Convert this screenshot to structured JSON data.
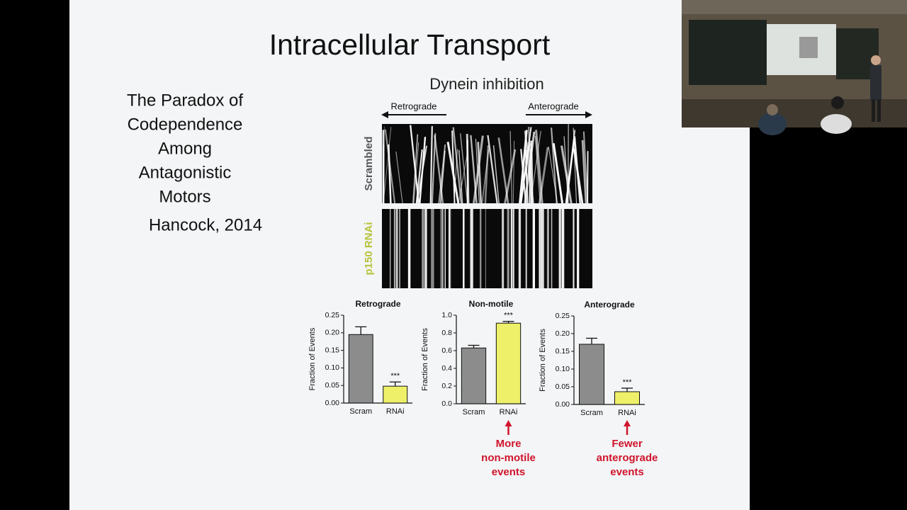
{
  "slide": {
    "title": "Intracellular Transport",
    "left_text": [
      "The Paradox of",
      "Codependence",
      "Among",
      "Antagonistic",
      "Motors"
    ],
    "citation": "Hancock, 2014",
    "figure_title": "Dynein inhibition",
    "direction_labels": [
      "Retrograde",
      "Anterograde"
    ],
    "kymograph_labels": [
      "Scrambled",
      "p150 RNAi"
    ]
  },
  "chart_data": [
    {
      "type": "bar",
      "title": "Retrograde",
      "y_label": "Fraction of Events",
      "categories": [
        "Scram",
        "RNAi"
      ],
      "values": [
        0.195,
        0.048
      ],
      "errors": [
        0.022,
        0.012
      ],
      "colors": [
        "#8c8c8c",
        "#eef06a"
      ],
      "significance": [
        null,
        "***"
      ],
      "ylim": [
        0,
        0.25
      ],
      "yticks": [
        {
          "value": 0,
          "label": "0.00"
        },
        {
          "value": 0.05,
          "label": "0.05"
        },
        {
          "value": 0.1,
          "label": "0.10"
        },
        {
          "value": 0.15,
          "label": "0.15"
        },
        {
          "value": 0.2,
          "label": "0.20"
        },
        {
          "value": 0.25,
          "label": "0.25"
        }
      ]
    },
    {
      "type": "bar",
      "title": "Non-motile",
      "y_label": "Fraction of Events",
      "categories": [
        "Scram",
        "RNAi"
      ],
      "values": [
        0.63,
        0.91
      ],
      "errors": [
        0.03,
        0.02
      ],
      "colors": [
        "#8c8c8c",
        "#eef06a"
      ],
      "significance": [
        null,
        "***"
      ],
      "ylim": [
        0,
        1.0
      ],
      "yticks": [
        {
          "value": 0,
          "label": "0.0"
        },
        {
          "value": 0.2,
          "label": "0.2"
        },
        {
          "value": 0.4,
          "label": "0.4"
        },
        {
          "value": 0.6,
          "label": "0.6"
        },
        {
          "value": 0.8,
          "label": "0.8"
        },
        {
          "value": 1.0,
          "label": "1.0"
        }
      ],
      "callout": [
        "More",
        "non-motile",
        "events"
      ],
      "callout_color": "#d0142c"
    },
    {
      "type": "bar",
      "title": "Anterograde",
      "y_label": "Fraction of Events",
      "categories": [
        "Scram",
        "RNAi"
      ],
      "values": [
        0.17,
        0.036
      ],
      "errors": [
        0.017,
        0.01
      ],
      "colors": [
        "#8c8c8c",
        "#eef06a"
      ],
      "significance": [
        null,
        "***"
      ],
      "ylim": [
        0,
        0.25
      ],
      "yticks": [
        {
          "value": 0,
          "label": "0.00"
        },
        {
          "value": 0.05,
          "label": "0.05"
        },
        {
          "value": 0.1,
          "label": "0.10"
        },
        {
          "value": 0.15,
          "label": "0.15"
        },
        {
          "value": 0.2,
          "label": "0.20"
        },
        {
          "value": 0.25,
          "label": "0.25"
        }
      ],
      "callout": [
        "Fewer",
        "anterograde",
        "events"
      ],
      "callout_color": "#d0142c"
    }
  ]
}
